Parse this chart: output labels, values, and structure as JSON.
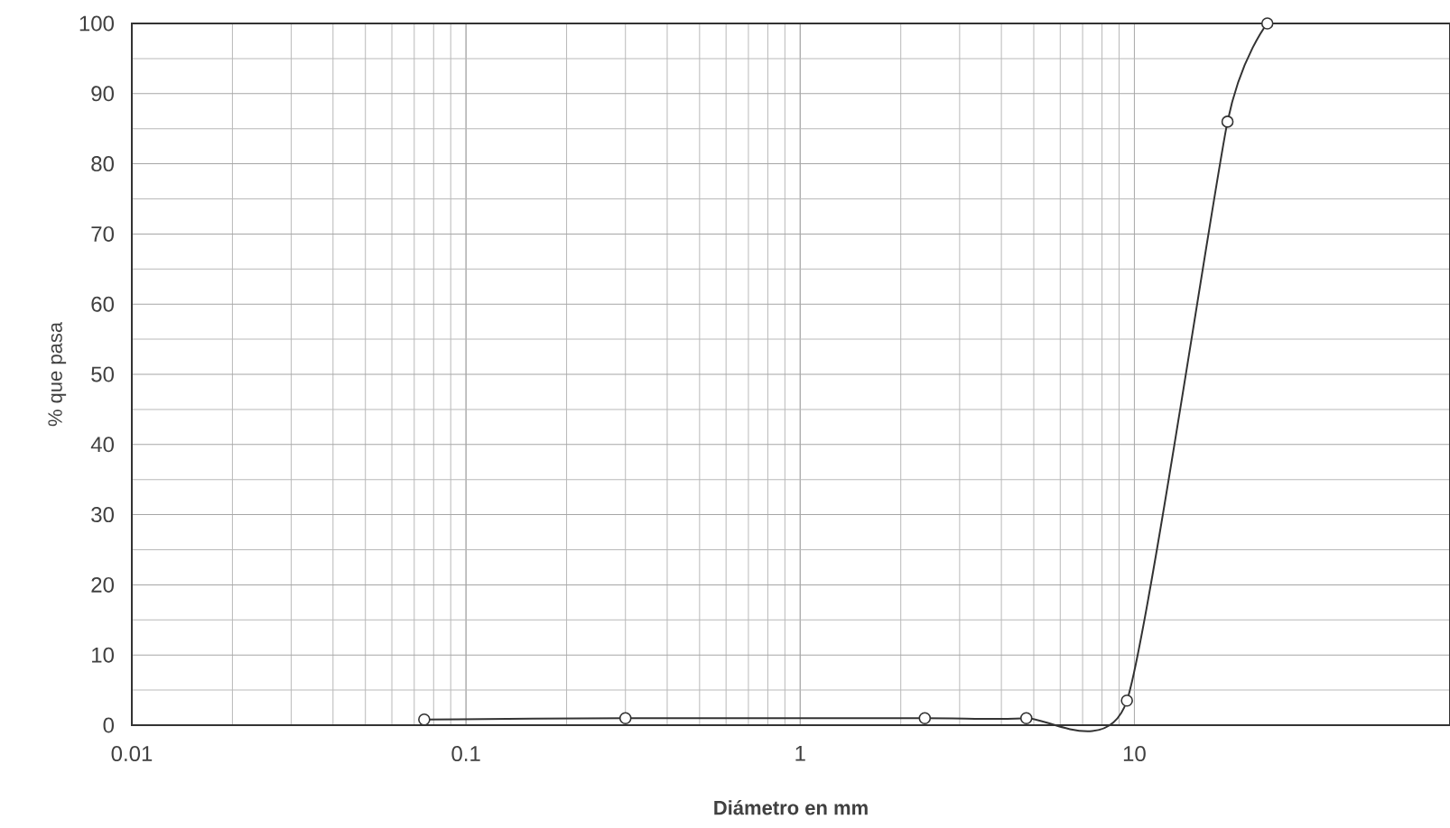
{
  "chart_data": {
    "type": "line",
    "xlabel": "Diámetro en mm",
    "ylabel": "% que pasa",
    "log": "x",
    "xlim": [
      0.01,
      88
    ],
    "ylim": [
      0,
      100
    ],
    "xticks": [
      0.01,
      0.1,
      1,
      10
    ],
    "yticks": [
      0,
      10,
      20,
      30,
      40,
      50,
      60,
      70,
      80,
      90,
      100
    ],
    "grid": true,
    "marker": "circle",
    "line_style": "solid",
    "series": [
      {
        "color": "#333333",
        "x": [
          0.075,
          0.3,
          2.36,
          4.75,
          9.5,
          19,
          25
        ],
        "values": [
          0.8,
          1,
          1,
          1,
          3.5,
          86,
          100
        ]
      }
    ]
  }
}
